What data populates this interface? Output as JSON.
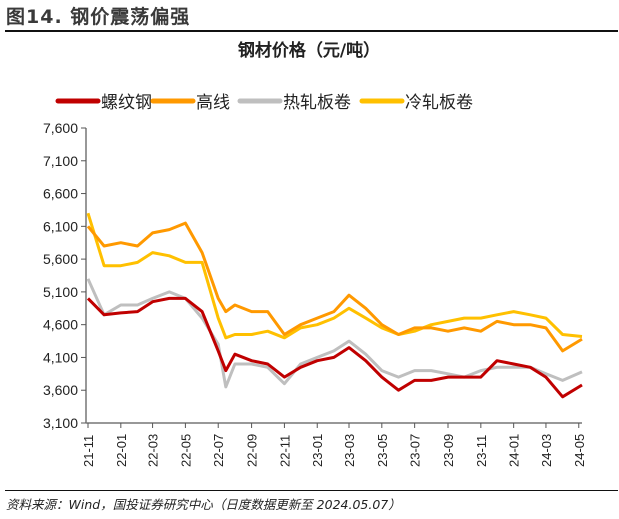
{
  "figure_title": "图14. 钢价震荡偏强",
  "source_note": "资料来源：Wind，国投证券研究中心（日度数据更新至 2024.05.07）",
  "chart_data": {
    "type": "line",
    "title": "钢材价格（元/吨）",
    "xlabel": "",
    "ylabel": "",
    "ylim": [
      3100,
      7600
    ],
    "yticks": [
      3100,
      3600,
      4100,
      4600,
      5100,
      5600,
      6100,
      6600,
      7100,
      7600
    ],
    "ytick_labels": [
      "3,100",
      "3,600",
      "4,100",
      "4,600",
      "5,100",
      "5,600",
      "6,100",
      "6,600",
      "7,100",
      "7,600"
    ],
    "xlim": [
      "2021-11-01",
      "2024-05-07"
    ],
    "xtick_labels": [
      "21-11",
      "22-01",
      "22-03",
      "22-05",
      "22-07",
      "22-09",
      "22-11",
      "23-01",
      "23-03",
      "23-05",
      "23-07",
      "23-09",
      "23-11",
      "24-01",
      "24-03",
      "24-05"
    ],
    "grid": false,
    "legend_position": "top",
    "x": [
      "2021-11-01",
      "2021-12-01",
      "2022-01-01",
      "2022-02-01",
      "2022-03-01",
      "2022-04-01",
      "2022-05-01",
      "2022-06-01",
      "2022-07-01",
      "2022-07-15",
      "2022-08-01",
      "2022-09-01",
      "2022-10-01",
      "2022-11-01",
      "2022-12-01",
      "2023-01-01",
      "2023-02-01",
      "2023-03-01",
      "2023-04-01",
      "2023-05-01",
      "2023-06-01",
      "2023-07-01",
      "2023-08-01",
      "2023-09-01",
      "2023-10-01",
      "2023-11-01",
      "2023-12-01",
      "2024-01-01",
      "2024-02-01",
      "2024-03-01",
      "2024-04-01",
      "2024-05-07"
    ],
    "series": [
      {
        "name": "螺纹钢",
        "color": "#C00000",
        "values": [
          5000,
          4750,
          4780,
          4800,
          4950,
          5000,
          5000,
          4800,
          4200,
          3900,
          4150,
          4050,
          4000,
          3800,
          3950,
          4050,
          4100,
          4250,
          4050,
          3800,
          3600,
          3750,
          3750,
          3800,
          3800,
          3800,
          4050,
          4000,
          3950,
          3800,
          3500,
          3680
        ]
      },
      {
        "name": "高线",
        "color": "#FF9900",
        "values": [
          6100,
          5800,
          5850,
          5800,
          6000,
          6050,
          6150,
          5700,
          5000,
          4800,
          4900,
          4800,
          4800,
          4450,
          4600,
          4700,
          4800,
          5050,
          4850,
          4600,
          4450,
          4550,
          4550,
          4500,
          4550,
          4500,
          4650,
          4600,
          4600,
          4550,
          4200,
          4380
        ]
      },
      {
        "name": "热轧板卷",
        "color": "#BFBFBF",
        "values": [
          5300,
          4750,
          4900,
          4900,
          5000,
          5100,
          5000,
          4700,
          4300,
          3650,
          4000,
          4000,
          3950,
          3700,
          4000,
          4100,
          4200,
          4350,
          4150,
          3900,
          3800,
          3900,
          3900,
          3850,
          3800,
          3900,
          3950,
          3950,
          3950,
          3850,
          3750,
          3880
        ]
      },
      {
        "name": "冷轧板卷",
        "color": "#FFC000",
        "values": [
          6300,
          5500,
          5500,
          5550,
          5700,
          5650,
          5550,
          5550,
          4700,
          4400,
          4450,
          4450,
          4500,
          4400,
          4550,
          4600,
          4700,
          4850,
          4700,
          4550,
          4450,
          4500,
          4600,
          4650,
          4700,
          4700,
          4750,
          4800,
          4750,
          4700,
          4450,
          4420
        ]
      }
    ]
  }
}
